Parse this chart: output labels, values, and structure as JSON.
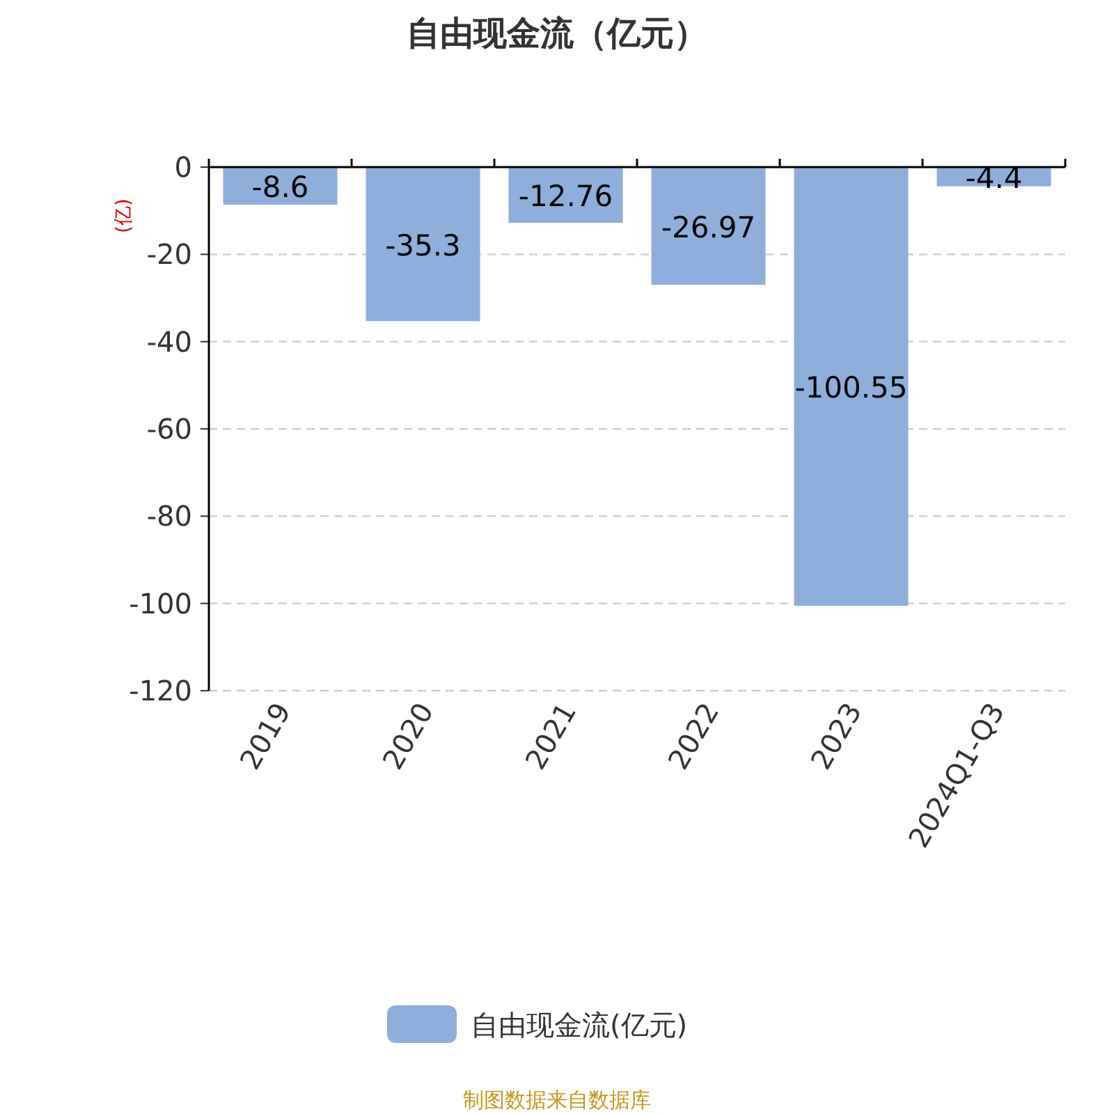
{
  "chart_data": {
    "type": "bar",
    "title": "自由现金流（亿元）",
    "ylabel": "(亿)",
    "categories": [
      "2019",
      "2020",
      "2021",
      "2022",
      "2023",
      "2024Q1-Q3"
    ],
    "series": [
      {
        "name": "自由现金流(亿元)",
        "color": "#8eaedb",
        "values": [
          -8.6,
          -35.3,
          -12.76,
          -26.97,
          -100.55,
          -4.4
        ]
      }
    ],
    "ylim": [
      -120,
      0
    ],
    "yticks": [
      0,
      -20,
      -40,
      -60,
      -80,
      -100,
      -120
    ],
    "grid": "y",
    "legend": "bottom",
    "data_labels": true,
    "annotations": [
      "制图数据来自数据库"
    ]
  }
}
